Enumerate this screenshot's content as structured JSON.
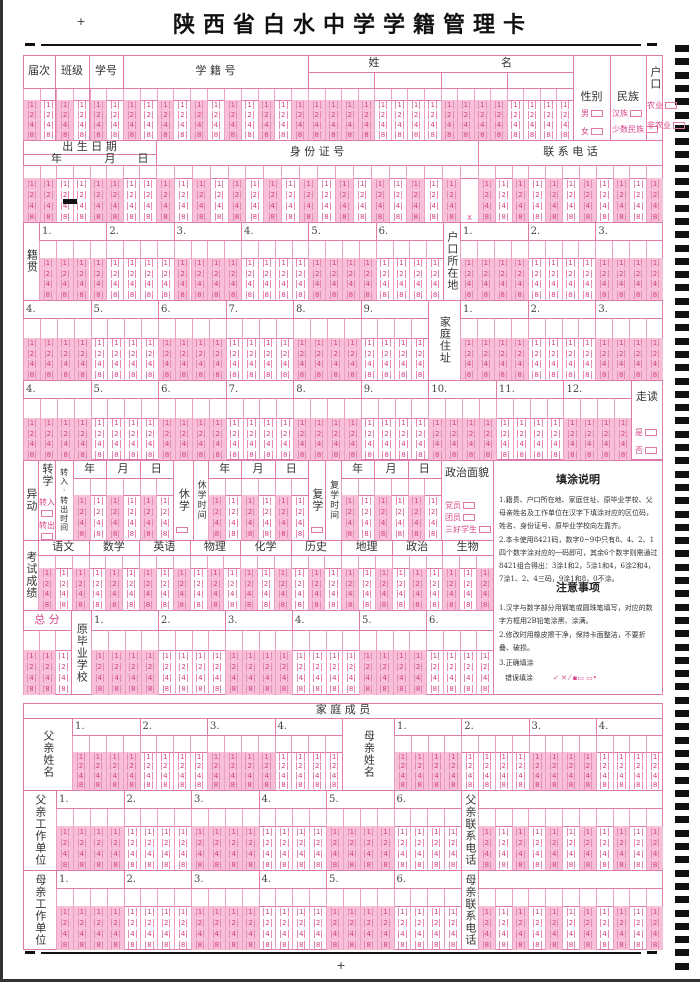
{
  "title": "陕西省白水中学学籍管理卡",
  "bubble_digits": [
    "1",
    "2",
    "4",
    "8"
  ],
  "id_check_char": "X",
  "basic": {
    "session": "届次",
    "class": "班级",
    "student_no": "学号",
    "registry_no": "学 籍 号",
    "name_surname": "姓",
    "name_given": "名",
    "gender": "性别",
    "ethnicity": "民族",
    "hukou": "户口",
    "gender_options": [
      "男",
      "女"
    ],
    "ethnicity_options": [
      "汉族",
      "少数民族"
    ],
    "hukou_options": [
      "农业",
      "非农业"
    ]
  },
  "birth": {
    "label": "出 生 日 期",
    "year": "年",
    "month": "月",
    "day": "日"
  },
  "id_card": "身 份 证 号",
  "phone": "联 系 电 话",
  "native_place": "籍贯",
  "hukou_location": "户口所在地",
  "home_address": "家庭住址",
  "boarding": {
    "label": "走读",
    "options": [
      "是",
      "否"
    ]
  },
  "group_numbers": [
    "1.",
    "2.",
    "3.",
    "4.",
    "5.",
    "6.",
    "7.",
    "8.",
    "9.",
    "10.",
    "11.",
    "12."
  ],
  "change": {
    "label": "异动",
    "transfer": "转学",
    "transfer_options": [
      "转入",
      "转出"
    ],
    "transfer_time": "转入·转出时间",
    "suspend": "休学",
    "suspend_time": "休学时间",
    "resume": "复学",
    "resume_time": "复学时间",
    "date_units": [
      "年",
      "月",
      "日"
    ],
    "political": "政治面貌",
    "political_options": [
      "党员",
      "团员",
      "三好学生"
    ]
  },
  "exam": {
    "label": "考试成绩",
    "subjects": [
      "语文",
      "数学",
      "英语",
      "物理",
      "化学",
      "历史",
      "地理",
      "政治",
      "生物"
    ],
    "total": "总 分"
  },
  "prev_school": "原毕业学校",
  "instructions": {
    "title": "填涂说明",
    "items": [
      "1.籍贯、户口所在地、家庭住址、原毕业学校、父母亲姓名及工作单位在汉字下填涂对应的区位码，姓名、身份证号、原毕业学校向左靠齐。",
      "2.本卡使用8421码，数字0~9中只有8、4、2、1四个数字涂对应的一码即可，其余6个数字则需通过8421组合得出：3涂1和2，5涂1和4，6涂2和4，7涂1、2、4三码，9涂1和8，0不涂。"
    ]
  },
  "notes": {
    "title": "注意事项",
    "items": [
      "1.汉字与数字部分用钢笔或圆珠笔填写，对应的数字方框用2B铅笔涂黑、涂满。",
      "2.修改时用橡皮擦干净，保持卡面整洁，不要折叠、破损。"
    ],
    "correct_label": "3.正确填涂",
    "wrong_label": "错误填涂"
  },
  "family": {
    "header": "家 庭 成 员",
    "father_name": "父亲姓名",
    "mother_name": "母亲姓名",
    "father_work": "父亲工作单位",
    "mother_work": "母亲工作单位",
    "father_phone": "父亲联系电话",
    "mother_phone": "母亲联系电话"
  },
  "colors": {
    "line": "#e07aa8",
    "fill": "#f7bfd8",
    "text": "#d9468a"
  }
}
